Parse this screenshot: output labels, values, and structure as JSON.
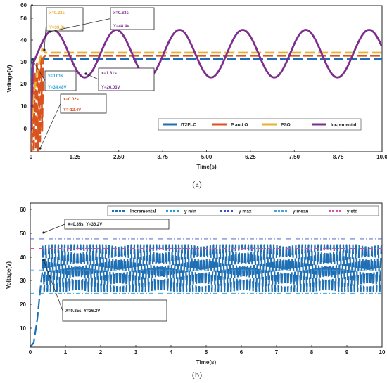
{
  "chart_data": [
    {
      "type": "line",
      "caption": "(a)",
      "xlabel": "Time(s)",
      "ylabel": "Voltage(V)",
      "xlim": [
        0,
        10
      ],
      "ylim": [
        -10,
        60
      ],
      "x_ticks": [
        "0",
        "1.25",
        "2.50",
        "3.75",
        "5.00",
        "6.25",
        "7.50",
        "8.75",
        "10.0"
      ],
      "y_ticks": [
        "0",
        "10",
        "20",
        "30",
        "40",
        "50",
        "60"
      ],
      "series": [
        {
          "name": "IT2FLC",
          "color": "#1f6fb4",
          "style": "dashed",
          "x": [
            0,
            0.01,
            0.05,
            10
          ],
          "y": [
            0,
            34.5,
            34.5,
            34.5
          ]
        },
        {
          "name": "P and O",
          "color": "#d9531e",
          "style": "dashed",
          "x": [
            0,
            0.02,
            0.05,
            0.08,
            0.11,
            0.14,
            0.17,
            0.2,
            0.23,
            0.26,
            0.29,
            0.32,
            0.35,
            0.4,
            10
          ],
          "y": [
            0,
            -12.4,
            30,
            -10,
            28,
            -8,
            33,
            -10,
            30,
            -5,
            35,
            0,
            35,
            36,
            36
          ]
        },
        {
          "name": "PSO",
          "color": "#e8b030",
          "style": "dashed",
          "x": [
            0,
            0.1,
            0.2,
            0.32,
            0.4,
            10
          ],
          "y": [
            0,
            20,
            30,
            39.3,
            37.5,
            37.5
          ]
        },
        {
          "name": "Incremental",
          "color": "#7e2f8e",
          "style": "solid",
          "sine": {
            "mean": 37,
            "amp": 11.4,
            "period": 1.8,
            "peak_t": 0.63,
            "start": 0.05
          },
          "x": [
            0,
            0.05
          ],
          "y": [
            0,
            30
          ]
        }
      ],
      "annotations": [
        {
          "x": 0.32,
          "y": 39.3,
          "lines": [
            "x=0.32s",
            "Y=39.3V"
          ],
          "color": "#e8b030"
        },
        {
          "x": 0.63,
          "y": 48.4,
          "lines": [
            "x=0.63s",
            "Y=48.4V"
          ],
          "color": "#7e2f8e"
        },
        {
          "x": 0.01,
          "y": 34.48,
          "lines": [
            "x=0.01s",
            "Y=34.48V"
          ],
          "color": "#1f9ed8"
        },
        {
          "x": 1.81,
          "y": 26.03,
          "lines": [
            "x=1.81s",
            "Y=26.03V"
          ],
          "color": "#7e2f8e"
        },
        {
          "x": 0.02,
          "y": -12.4,
          "lines": [
            "x=0.02s",
            "Y=-12.4V"
          ],
          "color": "#d9531e"
        }
      ],
      "legend": {
        "placement": "bottom-right",
        "orientation": "horizontal"
      }
    },
    {
      "type": "line",
      "caption": "(b)",
      "xlabel": "Time(s)",
      "ylabel": "Voltage(V)",
      "xlim": [
        0,
        10
      ],
      "ylim": [
        3,
        65
      ],
      "x_ticks": [
        "0",
        "1",
        "2",
        "3",
        "4",
        "5",
        "6",
        "7",
        "8",
        "9",
        "10"
      ],
      "y_ticks": [
        "10",
        "20",
        "30",
        "40",
        "50",
        "60"
      ],
      "series": [
        {
          "name": "Incremental",
          "color": "#1f6fb4",
          "style": "dashed",
          "oscillation": {
            "start": 0.35,
            "end": 10,
            "period": 0.09,
            "low": 27,
            "high": 47
          },
          "x": [
            0,
            0.1,
            0.2,
            0.3,
            0.35
          ],
          "y": [
            3,
            5,
            15,
            30,
            36.2
          ]
        },
        {
          "name": "y min",
          "color": "#1f9ed8",
          "style": "dashdot",
          "x": [
            0,
            10
          ],
          "y": [
            26.2,
            26.2
          ]
        },
        {
          "name": "y max",
          "color": "#3b4fc4",
          "style": "dashdot",
          "x": [
            0,
            10
          ],
          "y": [
            49.6,
            49.6
          ]
        },
        {
          "name": "y mean",
          "color": "#4aa0d8",
          "style": "dashdot",
          "x": [
            0,
            10
          ],
          "y": [
            36.2,
            36.2
          ]
        },
        {
          "name": "y std",
          "color": "#d94fa8",
          "style": "dashdot",
          "x": [
            0,
            10
          ],
          "y": [
            45.5,
            45.5
          ]
        }
      ],
      "annotations": [
        {
          "x": 0.35,
          "y": 49.6,
          "lines": [
            "X=0.35s; Y=36.2V"
          ],
          "color": "#222222"
        },
        {
          "x": 0.35,
          "y": 36.2,
          "lines": [
            "X=0.35s; Y=36.2V"
          ],
          "color": "#222222"
        }
      ],
      "legend": {
        "placement": "top",
        "orientation": "horizontal"
      }
    }
  ]
}
